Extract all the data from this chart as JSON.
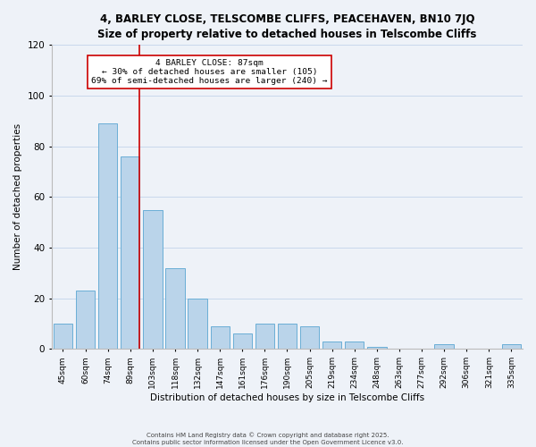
{
  "title": "4, BARLEY CLOSE, TELSCOMBE CLIFFS, PEACEHAVEN, BN10 7JQ",
  "subtitle": "Size of property relative to detached houses in Telscombe Cliffs",
  "xlabel": "Distribution of detached houses by size in Telscombe Cliffs",
  "ylabel": "Number of detached properties",
  "bar_labels": [
    "45sqm",
    "60sqm",
    "74sqm",
    "89sqm",
    "103sqm",
    "118sqm",
    "132sqm",
    "147sqm",
    "161sqm",
    "176sqm",
    "190sqm",
    "205sqm",
    "219sqm",
    "234sqm",
    "248sqm",
    "263sqm",
    "277sqm",
    "292sqm",
    "306sqm",
    "321sqm",
    "335sqm"
  ],
  "bar_heights": [
    10,
    23,
    89,
    76,
    55,
    32,
    20,
    9,
    6,
    10,
    10,
    9,
    3,
    3,
    1,
    0,
    0,
    2,
    0,
    0,
    2
  ],
  "bar_color": "#bad4ea",
  "bar_edge_color": "#6aaed6",
  "ylim": [
    0,
    120
  ],
  "yticks": [
    0,
    20,
    40,
    60,
    80,
    100,
    120
  ],
  "vline_index": 3,
  "vline_color": "#cc0000",
  "annotation_title": "4 BARLEY CLOSE: 87sqm",
  "annotation_line1": "← 30% of detached houses are smaller (105)",
  "annotation_line2": "69% of semi-detached houses are larger (240) →",
  "annotation_box_color": "#ffffff",
  "annotation_box_edge": "#cc0000",
  "footer1": "Contains HM Land Registry data © Crown copyright and database right 2025.",
  "footer2": "Contains public sector information licensed under the Open Government Licence v3.0.",
  "background_color": "#eef2f8",
  "grid_color": "#c8d8ec"
}
